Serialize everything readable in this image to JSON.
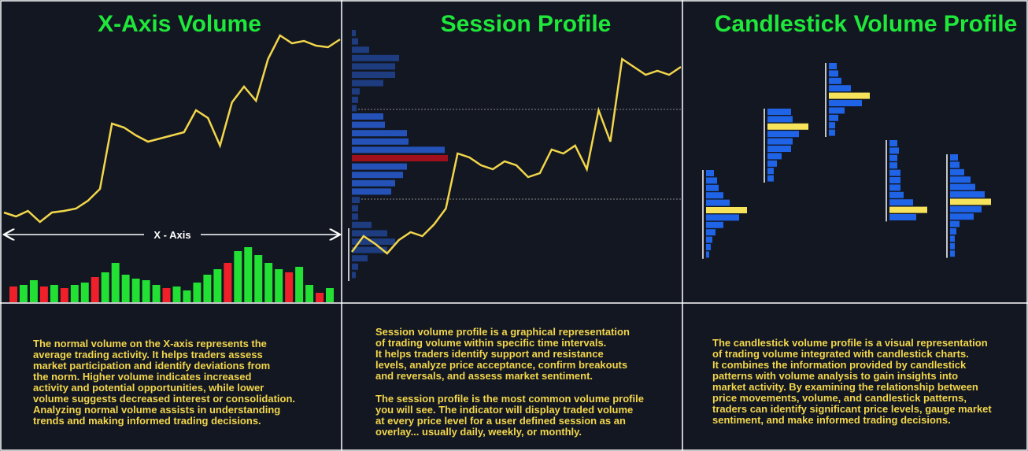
{
  "panels": [
    {
      "title": "X-Axis Volume",
      "axis_label": "X - Axis",
      "price": [
        115,
        110,
        117,
        103,
        115,
        117,
        120,
        130,
        145,
        228,
        223,
        213,
        205,
        209,
        213,
        217,
        245,
        235,
        200,
        255,
        275,
        257,
        310,
        340,
        330,
        333,
        327,
        325,
        335
      ],
      "volume": [
        20,
        22,
        28,
        20,
        22,
        18,
        22,
        25,
        32,
        38,
        50,
        35,
        30,
        28,
        22,
        18,
        20,
        15,
        25,
        35,
        42,
        50,
        65,
        70,
        60,
        50,
        42,
        38,
        45,
        22,
        12,
        18
      ],
      "volume_colors": [
        "#f0202a",
        "#22e034",
        "#22e034",
        "#f0202a",
        "#22e034",
        "#f0202a",
        "#22e034",
        "#22e034",
        "#f0202a",
        "#22e034",
        "#22e034",
        "#22e034",
        "#22e034",
        "#22e034",
        "#22e034",
        "#f0202a",
        "#22e034",
        "#22e034",
        "#22e034",
        "#22e034",
        "#22e034",
        "#f0202a",
        "#22e034",
        "#22e034",
        "#22e034",
        "#22e034",
        "#22e034",
        "#f0202a",
        "#22e034",
        "#22e034",
        "#f0202a",
        "#22e034"
      ],
      "text": [
        [
          "The normal volume on the X-axis represents the",
          "average trading activity. It helps traders assess",
          "market participation and identify deviations from",
          "the norm. Higher volume indicates increased",
          "activity and potential opportunities, while lower",
          "volume suggests decreased interest or consolidation.",
          "Analyzing normal volume assists in understanding",
          "trends and making informed trading decisions."
        ]
      ]
    },
    {
      "title": "Session Profile",
      "price": [
        65,
        85,
        75,
        63,
        80,
        90,
        85,
        100,
        120,
        190,
        185,
        175,
        170,
        180,
        175,
        160,
        165,
        195,
        190,
        200,
        170,
        245,
        205,
        310,
        300,
        290,
        295,
        290,
        300
      ],
      "profile": [
        5,
        8,
        22,
        60,
        55,
        55,
        40,
        10,
        8,
        6,
        40,
        42,
        70,
        72,
        118,
        122,
        70,
        65,
        55,
        50,
        10,
        8,
        8,
        25,
        45,
        55,
        45,
        20,
        8,
        5
      ],
      "profile_colors": [
        "#1d3d80",
        "#1d3d80",
        "#1d3d80",
        "#1d3d80",
        "#1d3d80",
        "#1d3d80",
        "#1d3d80",
        "#1d3d80",
        "#1d3d80",
        "#1d3d80",
        "#2452b8",
        "#2452b8",
        "#2452b8",
        "#2452b8",
        "#2452b8",
        "#a0101c",
        "#2452b8",
        "#2452b8",
        "#2452b8",
        "#2452b8",
        "#1d3d80",
        "#1d3d80",
        "#1d3d80",
        "#1d3d80",
        "#1d3d80",
        "#1d3d80",
        "#1d3d80",
        "#1d3d80",
        "#1d3d80",
        "#1d3d80"
      ],
      "text": [
        [
          "Session volume profile is a graphical representation",
          "of trading volume within specific time intervals.",
          "It helps traders identify support and resistance",
          "levels, analyze price acceptance, confirm breakouts",
          " and reversals, and assess market sentiment."
        ],
        [
          "The session profile is the most common volume profile",
          "you will see. The indicator will display traded volume",
          "at every price level for a user defined session as an",
          "overlay... usually daily, weekly, or monthly."
        ]
      ]
    },
    {
      "title": "Candlestick Volume Profile",
      "bar_color": "#1f63e6",
      "poc_color": "#f7e35a",
      "profiles": [
        {
          "values": [
            10,
            14,
            16,
            22,
            30,
            52,
            42,
            22,
            12,
            8,
            6,
            4
          ],
          "poc": 5
        },
        {
          "values": [
            30,
            32,
            52,
            40,
            32,
            30,
            18,
            12,
            8,
            8
          ],
          "poc": 2
        },
        {
          "values": [
            10,
            12,
            16,
            28,
            52,
            42,
            20,
            12,
            8,
            8
          ],
          "poc": 4
        },
        {
          "values": [
            10,
            12,
            10,
            10,
            14,
            14,
            14,
            18,
            30,
            48,
            34
          ],
          "poc": 9
        },
        {
          "values": [
            10,
            12,
            18,
            26,
            32,
            44,
            52,
            40,
            30,
            12,
            8,
            6,
            6,
            6
          ],
          "poc": 6
        }
      ],
      "text": [
        [
          "The candlestick volume profile is a visual representation",
          "of trading volume integrated with candlestick charts.",
          "It combines the information provided by candlestick",
          "patterns with volume analysis to gain insights into",
          "market activity. By examining the relationship between",
          "price movements, volume, and candlestick patterns,",
          "traders can identify significant price levels, gauge market",
          "sentiment, and make informed trading decisions."
        ]
      ]
    }
  ]
}
